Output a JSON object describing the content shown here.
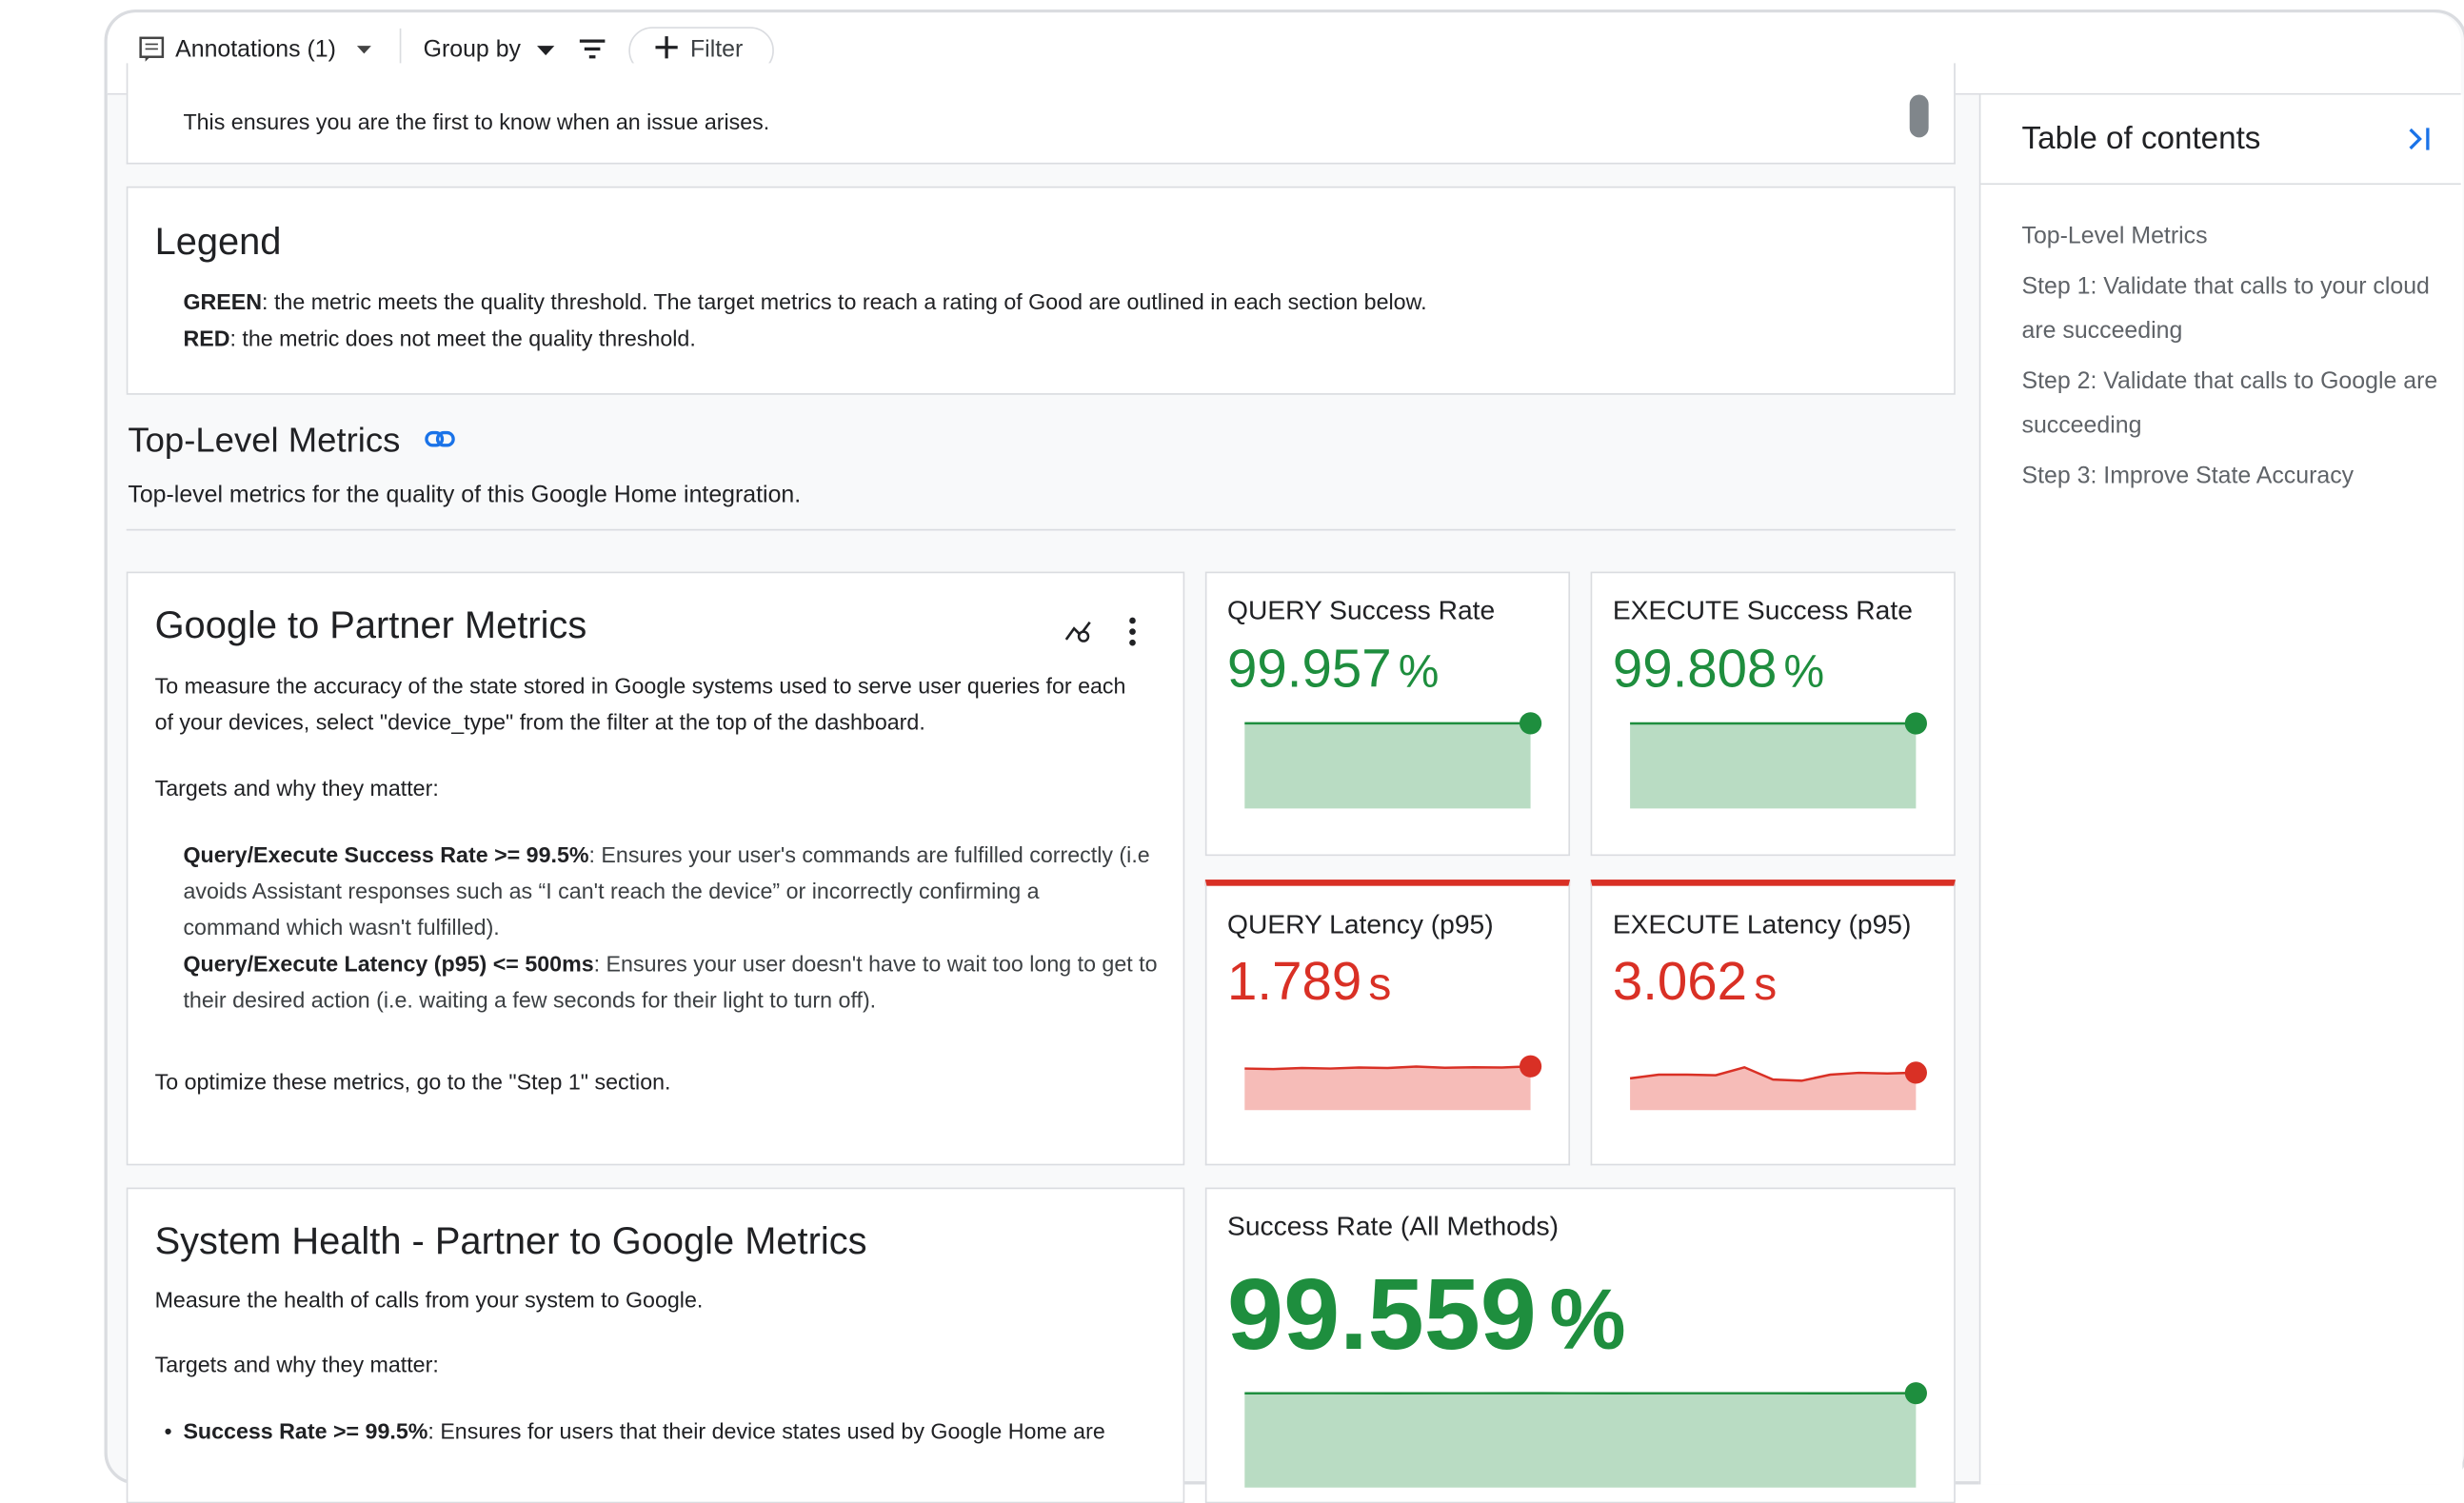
{
  "toolbar": {
    "annotations": "Annotations (1)",
    "group_by": "Group by",
    "filter": "Filter"
  },
  "intro_text": "This ensures you are the first to know when an issue arises.",
  "legend": {
    "title": "Legend",
    "items": [
      {
        "label": "GREEN",
        "text": ": the metric meets the quality threshold. The target metrics to reach a rating of Good are outlined in each section below."
      },
      {
        "label": "RED",
        "text": ": the metric does not meet the quality threshold."
      }
    ]
  },
  "section": {
    "title": "Top-Level Metrics",
    "description": "Top-level metrics for the quality of this Google Home integration."
  },
  "g2p": {
    "title": "Google to Partner Metrics",
    "lines": [
      "To measure the accuracy of the state stored in Google systems used to serve user queries for each",
      "of your devices, select \"device_type\" from the filter at the top of the dashboard."
    ],
    "targets": "Targets and why they matter:",
    "bullets": [
      {
        "label": "Query/Execute Success Rate >= 99.5%",
        "lines": [
          ": Ensures your user's commands are fulfilled correctly (i.e",
          "avoids Assistant responses such as “I can't reach the device” or incorrectly confirming a",
          "command which wasn't fulfilled)."
        ]
      },
      {
        "label": "Query/Execute Latency (p95) <= 500ms",
        "lines": [
          ": Ensures your user doesn't have to wait too long to get to",
          "their desired action (i.e. waiting a few seconds for their light to turn off)."
        ]
      }
    ],
    "footer": "To optimize these metrics, go to the \"Step 1\" section."
  },
  "metrics": [
    {
      "title": "QUERY Success Rate",
      "value": "99.957",
      "unit": "%",
      "color": "#1e8e3e",
      "fill": "#b9dcc3",
      "spark": [
        99.95,
        99.96,
        99.95,
        99.96,
        99.96,
        99.95,
        99.96,
        99.95,
        99.96,
        99.957
      ],
      "spark_ylim": [
        0,
        100
      ]
    },
    {
      "title": "EXECUTE Success Rate",
      "value": "99.808",
      "unit": "%",
      "color": "#1e8e3e",
      "fill": "#b9dcc3",
      "spark": [
        99.8,
        99.81,
        99.8,
        99.81,
        99.8,
        99.81,
        99.8,
        99.81,
        99.8,
        99.808
      ],
      "spark_ylim": [
        0,
        100
      ]
    },
    {
      "title": "QUERY Latency (p95)",
      "value": "1.789",
      "unit": "s",
      "color": "#d93025",
      "fill": "#f6bcb8",
      "spark": [
        1.7,
        1.68,
        1.72,
        1.7,
        1.74,
        1.72,
        1.78,
        1.73,
        1.75,
        1.74,
        1.789
      ],
      "spark_ylim": [
        0,
        2
      ]
    },
    {
      "title": "EXECUTE Latency (p95)",
      "value": "3.062",
      "unit": "s",
      "color": "#d93025",
      "fill": "#f6bcb8",
      "spark": [
        2.6,
        2.9,
        2.9,
        2.85,
        3.5,
        2.5,
        2.4,
        2.9,
        3.05,
        3.0,
        3.062
      ],
      "spark_ylim": [
        0,
        4
      ]
    },
    {
      "title": "Success Rate (All Methods)",
      "value": "99.559",
      "unit": "%",
      "color": "#1e8e3e",
      "fill": "#b9dcc3",
      "spark": [
        99.5,
        99.55,
        99.53,
        99.55,
        99.56,
        99.54,
        99.55,
        99.55,
        99.53,
        99.559
      ],
      "spark_ylim": [
        0,
        100
      ]
    }
  ],
  "system_health": {
    "title": "System Health - Partner to Google Metrics",
    "description": "Measure the health of calls from your system to Google.",
    "targets": "Targets and why they matter:",
    "bullet": {
      "label": "Success Rate >= 99.5%",
      "text": ": Ensures for users that their device states used by Google Home are"
    }
  },
  "toc": {
    "title": "Table of contents",
    "items": [
      [
        "Top-Level Metrics"
      ],
      [
        "Step 1: Validate that calls to your cloud",
        "are succeeding"
      ],
      [
        "Step 2: Validate that calls to Google are",
        "succeeding"
      ],
      [
        "Step 3: Improve State Accuracy"
      ]
    ]
  }
}
